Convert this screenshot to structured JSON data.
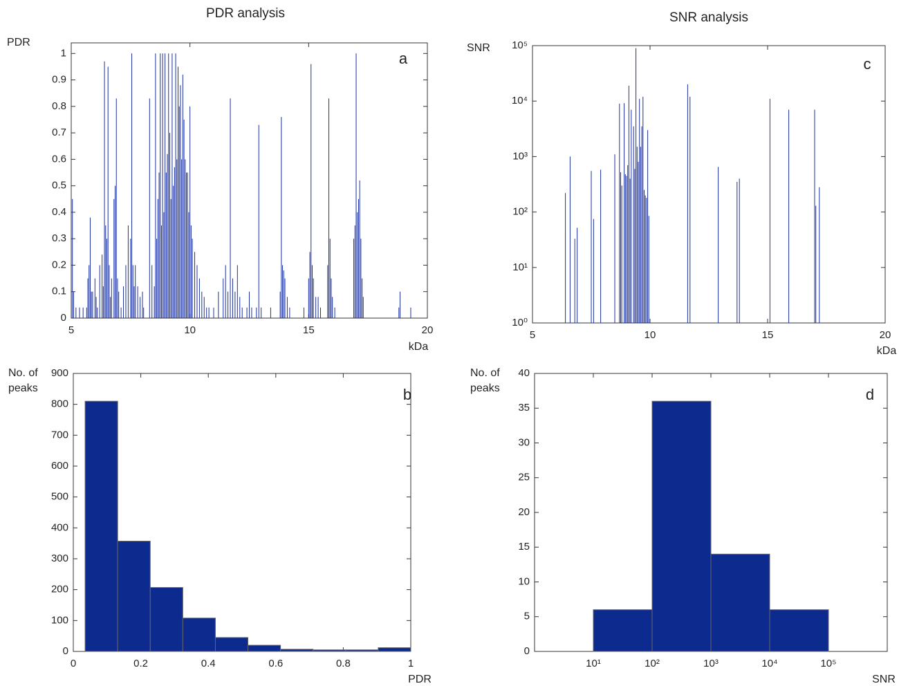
{
  "chart_data": [
    {
      "type": "stem",
      "title": "PDR analysis",
      "ylabel": [
        "PDR"
      ],
      "xlabel": "kDa",
      "panel": "a",
      "color": "#1a2f9e",
      "xlim": [
        5,
        20
      ],
      "xticks": [
        5,
        10,
        15,
        20
      ],
      "ylim": [
        0,
        1.04
      ],
      "yticks": [
        0,
        0.1,
        0.2,
        0.3,
        0.4,
        0.5,
        0.6,
        0.7,
        0.8,
        0.9,
        1
      ],
      "x": [
        5.05,
        5.1,
        5.2,
        5.35,
        5.5,
        5.65,
        5.7,
        5.75,
        5.8,
        5.85,
        5.9,
        6.0,
        6.05,
        6.1,
        6.2,
        6.3,
        6.35,
        6.4,
        6.45,
        6.5,
        6.55,
        6.6,
        6.65,
        6.7,
        6.8,
        6.85,
        6.9,
        6.95,
        7.0,
        7.1,
        7.2,
        7.3,
        7.4,
        7.5,
        7.55,
        7.6,
        7.65,
        7.7,
        7.8,
        7.9,
        8.0,
        8.05,
        8.3,
        8.4,
        8.5,
        8.55,
        8.6,
        8.65,
        8.7,
        8.75,
        8.8,
        8.85,
        8.9,
        8.95,
        9.0,
        9.05,
        9.1,
        9.15,
        9.2,
        9.25,
        9.3,
        9.35,
        9.4,
        9.45,
        9.5,
        9.55,
        9.6,
        9.65,
        9.7,
        9.75,
        9.8,
        9.85,
        9.9,
        9.95,
        10.0,
        10.05,
        10.1,
        10.2,
        10.3,
        10.4,
        10.5,
        10.6,
        10.7,
        10.8,
        11.0,
        11.2,
        11.4,
        11.5,
        11.6,
        11.7,
        11.8,
        11.9,
        12.0,
        12.1,
        12.2,
        12.4,
        12.5,
        12.6,
        12.8,
        12.9,
        13.0,
        13.4,
        13.8,
        13.85,
        13.9,
        13.95,
        14.0,
        14.1,
        14.2,
        14.8,
        15.0,
        15.05,
        15.1,
        15.15,
        15.2,
        15.3,
        15.4,
        15.5,
        15.8,
        15.85,
        15.9,
        15.95,
        16.0,
        16.1,
        16.9,
        16.95,
        17.0,
        17.05,
        17.1,
        17.15,
        17.2,
        17.25,
        17.3,
        18.8,
        18.85,
        19.3
      ],
      "values": [
        0.45,
        0.1,
        0.04,
        0.04,
        0.04,
        0.04,
        0.15,
        0.2,
        0.38,
        0.1,
        0.1,
        0.15,
        0.08,
        0.04,
        0.2,
        0.24,
        0.12,
        0.97,
        0.35,
        0.3,
        0.95,
        0.2,
        0.08,
        0.15,
        0.45,
        0.5,
        0.83,
        0.15,
        0.1,
        0.04,
        0.12,
        0.2,
        0.35,
        0.3,
        1.0,
        0.2,
        0.12,
        0.2,
        0.12,
        0.08,
        0.1,
        0.04,
        0.83,
        0.2,
        0.12,
        1.0,
        0.3,
        0.45,
        0.55,
        1.0,
        0.35,
        1.0,
        0.4,
        1.0,
        0.55,
        0.62,
        1.0,
        0.7,
        0.45,
        1.0,
        0.5,
        0.57,
        1.0,
        0.6,
        0.95,
        0.8,
        0.88,
        0.6,
        0.92,
        0.75,
        0.6,
        0.55,
        0.55,
        0.4,
        0.8,
        0.35,
        0.3,
        0.25,
        0.2,
        0.15,
        0.1,
        0.08,
        0.04,
        0.04,
        0.04,
        0.1,
        0.15,
        0.2,
        0.1,
        0.83,
        0.15,
        0.1,
        0.2,
        0.08,
        0.04,
        0.04,
        0.1,
        0.04,
        0.04,
        0.73,
        0.04,
        0.04,
        0.1,
        0.76,
        0.2,
        0.18,
        0.15,
        0.08,
        0.04,
        0.04,
        0.15,
        0.25,
        0.96,
        0.2,
        0.15,
        0.08,
        0.08,
        0.04,
        0.2,
        0.83,
        0.3,
        0.15,
        0.08,
        0.04,
        0.3,
        0.35,
        1.0,
        0.4,
        0.45,
        0.52,
        0.3,
        0.15,
        0.08,
        0.04,
        0.1,
        0.04
      ]
    },
    {
      "type": "histogram",
      "ylabel": [
        "No. of",
        "peaks"
      ],
      "xlabel": "PDR",
      "panel": "b",
      "color": "#0d2b8e",
      "xlim": [
        0,
        1
      ],
      "xticks": [
        0,
        0.2,
        0.4,
        0.6,
        0.8,
        1
      ],
      "ylim": [
        0,
        900
      ],
      "yticks": [
        0,
        100,
        200,
        300,
        400,
        500,
        600,
        700,
        800,
        900
      ],
      "bins": [
        0.035,
        0.1315,
        0.228,
        0.3245,
        0.421,
        0.5175,
        0.614,
        0.7105,
        0.807,
        0.9035,
        1.0
      ],
      "counts": [
        810,
        357,
        207,
        108,
        45,
        20,
        7,
        5,
        5,
        12
      ]
    },
    {
      "type": "stem",
      "title": "SNR analysis",
      "ylabel": [
        "SNR"
      ],
      "xlabel": "kDa",
      "panel": "c",
      "color": "#1a2f9e",
      "ylog": true,
      "xlim": [
        5,
        20
      ],
      "xticks": [
        5,
        10,
        15,
        20
      ],
      "ylim": [
        1,
        100000
      ],
      "yticks": [
        {
          "value": 1,
          "label": "10⁰"
        },
        {
          "value": 10,
          "label": "10¹"
        },
        {
          "value": 100,
          "label": "10²"
        },
        {
          "value": 1000,
          "label": "10³"
        },
        {
          "value": 10000,
          "label": "10⁴"
        },
        {
          "value": 100000,
          "label": "10⁵"
        }
      ],
      "x": [
        6.4,
        6.6,
        6.8,
        6.9,
        7.5,
        7.6,
        7.9,
        8.5,
        8.7,
        8.75,
        8.8,
        8.9,
        8.95,
        9.0,
        9.05,
        9.1,
        9.15,
        9.2,
        9.3,
        9.35,
        9.4,
        9.45,
        9.5,
        9.55,
        9.6,
        9.65,
        9.7,
        9.75,
        9.8,
        9.85,
        9.9,
        9.95,
        11.6,
        11.7,
        12.9,
        13.7,
        13.8,
        15.1,
        15.9,
        17.0,
        17.05,
        17.2
      ],
      "values": [
        220,
        1000,
        33,
        52,
        550,
        75,
        580,
        1100,
        9000,
        520,
        300,
        9200,
        480,
        450,
        700,
        19000,
        400,
        7000,
        3500,
        600,
        90000,
        1500,
        800,
        11000,
        1500,
        3500,
        12000,
        250,
        200,
        180,
        3000,
        85,
        20000,
        12000,
        650,
        350,
        400,
        11000,
        7000,
        7000,
        130,
        280
      ]
    },
    {
      "type": "histogram",
      "ylabel": [
        "No. of",
        "peaks"
      ],
      "xlabel": "SNR",
      "panel": "d",
      "color": "#0d2b8e",
      "xlog": true,
      "xlim": [
        1,
        1000000
      ],
      "xticks": [
        {
          "value": 10,
          "label": "10¹"
        },
        {
          "value": 100,
          "label": "10²"
        },
        {
          "value": 1000,
          "label": "10³"
        },
        {
          "value": 10000,
          "label": "10⁴"
        },
        {
          "value": 100000,
          "label": "10⁵"
        }
      ],
      "ylim": [
        0,
        40
      ],
      "yticks": [
        0,
        5,
        10,
        15,
        20,
        25,
        30,
        35,
        40
      ],
      "bins": [
        10,
        100,
        1000,
        10000,
        100000
      ],
      "counts": [
        6,
        36,
        14,
        6
      ]
    }
  ]
}
